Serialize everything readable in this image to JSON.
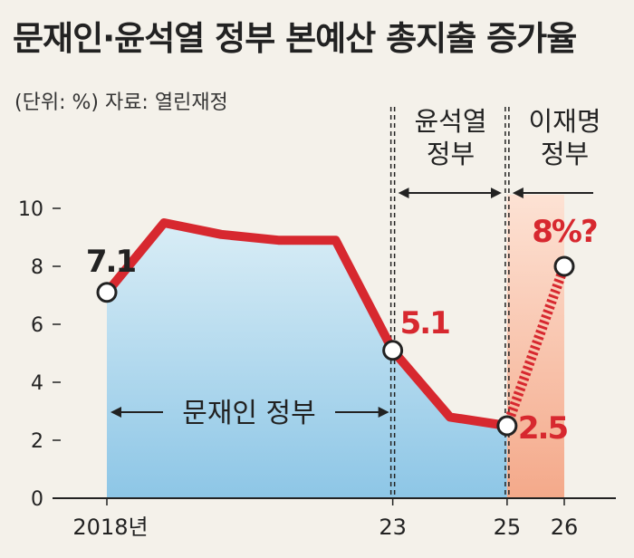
{
  "chart_data": {
    "type": "line",
    "title": "문재인·윤석열 정부 본예산 총지출 증가율",
    "subtitle": "(단위: %) 자료: 열린재정",
    "x": [
      2018,
      2019,
      2020,
      2021,
      2022,
      2023,
      2024,
      2025,
      2026
    ],
    "x_tick_labels": [
      {
        "x": 2018,
        "label": "2018년"
      },
      {
        "x": 2023,
        "label": "23"
      },
      {
        "x": 2025,
        "label": "25"
      },
      {
        "x": 2026,
        "label": "26"
      }
    ],
    "series": [
      {
        "values": [
          7.1,
          9.5,
          9.1,
          8.9,
          8.9,
          5.1,
          2.8,
          2.5,
          null
        ],
        "style": "solid"
      },
      {
        "values": [
          null,
          null,
          null,
          null,
          null,
          null,
          null,
          2.5,
          8.0
        ],
        "style": "dashed"
      }
    ],
    "point_labels": [
      {
        "x": 2018,
        "y": 7.1,
        "text": "7.1",
        "color": "#222222"
      },
      {
        "x": 2023,
        "y": 5.1,
        "text": "5.1",
        "color": "#d7282f"
      },
      {
        "x": 2025,
        "y": 2.5,
        "text": "2.5",
        "color": "#d7282f"
      },
      {
        "x": 2026,
        "y": 8.0,
        "text": "8%?",
        "color": "#d7282f"
      }
    ],
    "markers": [
      {
        "x": 2018,
        "y": 7.1
      },
      {
        "x": 2023,
        "y": 5.1
      },
      {
        "x": 2025,
        "y": 2.5
      },
      {
        "x": 2026,
        "y": 8.0
      }
    ],
    "ylim": [
      0,
      10
    ],
    "y_ticks": [
      0,
      2,
      4,
      6,
      8,
      10
    ],
    "periods": [
      {
        "label": "문재인 정부",
        "start": 2018,
        "end": 2023
      },
      {
        "label_line1": "윤석열",
        "label_line2": "정부",
        "start": 2023,
        "end": 2025
      },
      {
        "label_line1": "이재명",
        "label_line2": "정부",
        "start": 2025,
        "end": 2026
      }
    ],
    "colors": {
      "line": "#d7282f",
      "marker_fill": "#ffffff",
      "marker_stroke": "#222222",
      "blue_fill_top": "#d9edf6",
      "blue_fill_bottom": "#8dc6e6",
      "orange_fill_top": "#fde2d4",
      "orange_fill_bottom": "#f4a98a",
      "axis": "#222222"
    }
  }
}
